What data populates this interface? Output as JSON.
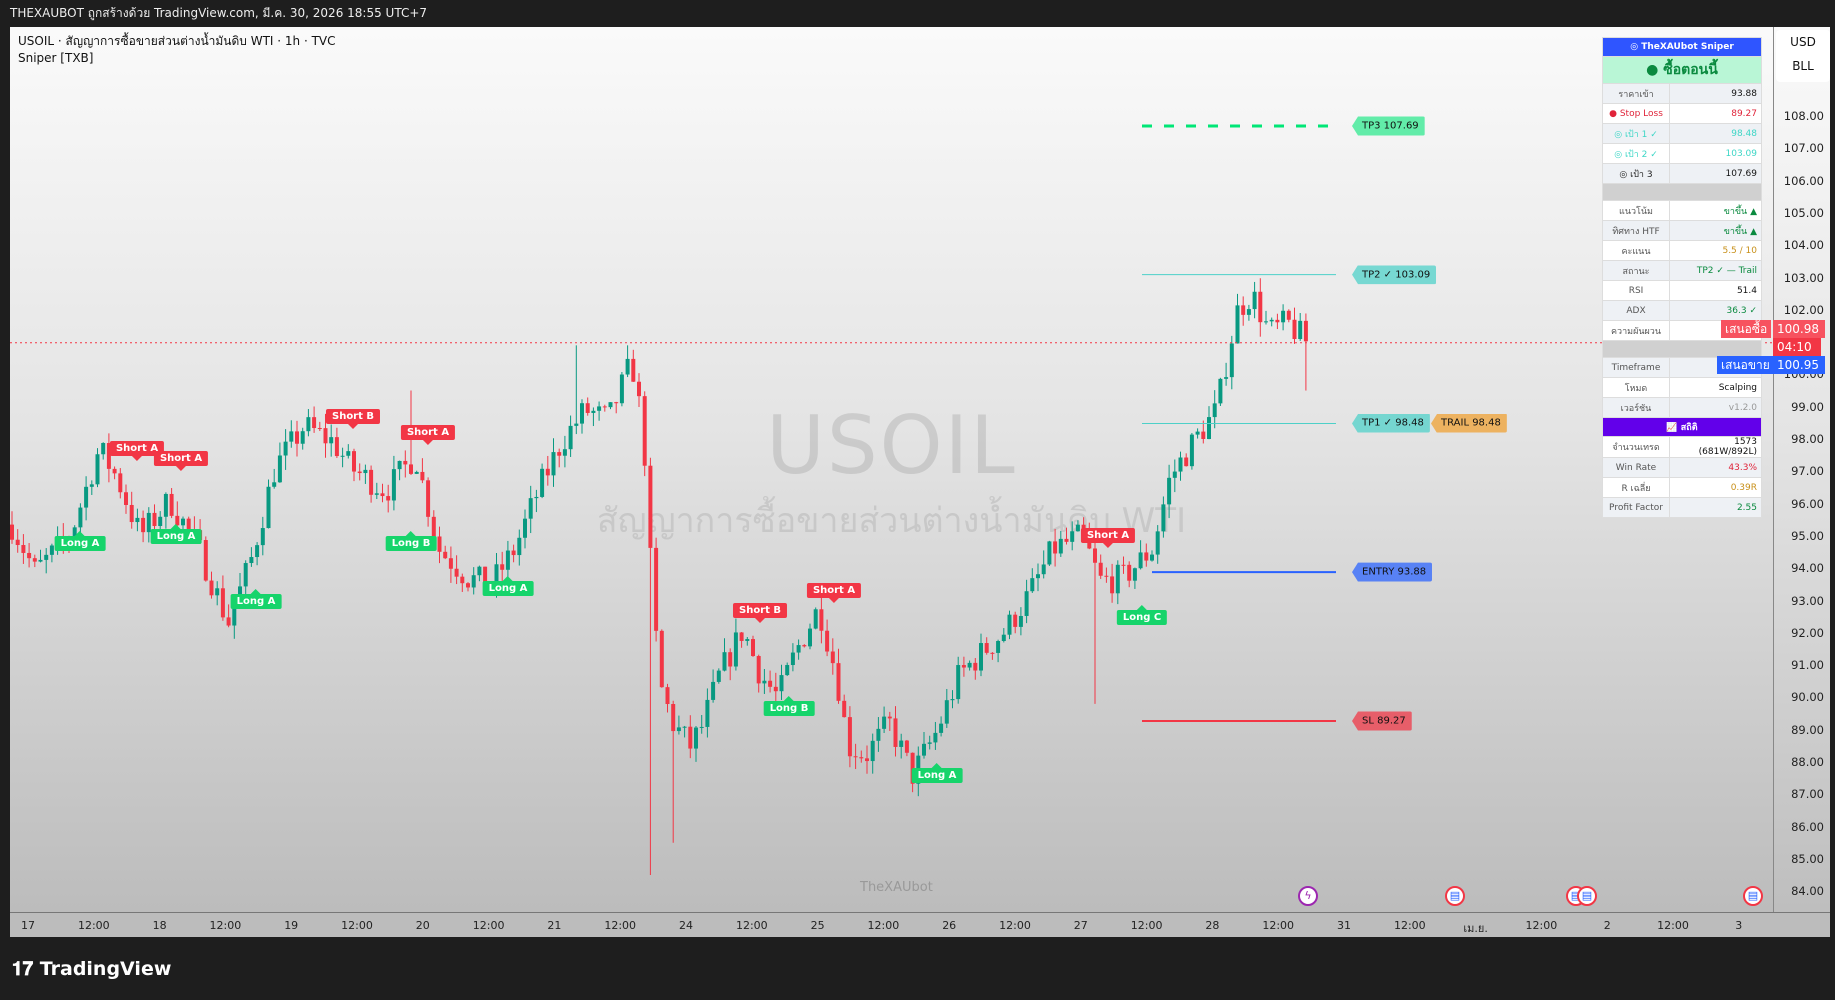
{
  "header": {
    "title": "THEXAUBOT ถูกสร้างด้วย TradingView.com, มี.ค. 30, 2026 18:55 UTC+7"
  },
  "legend": {
    "symbol_line": "USOIL · สัญญาการซื้อขายส่วนต่างน้ำมันดิบ WTI · 1h · TVC",
    "indicator": "Sniper [TXB]"
  },
  "watermark": {
    "symbol": "USOIL",
    "description": "สัญญาการซื้อขายส่วนต่างน้ำมันดิบ WTI",
    "author": "TheXAUbot"
  },
  "price_axis": {
    "currency": "USD",
    "unit": "BLL",
    "labels": [
      "108.00",
      "107.00",
      "106.00",
      "105.00",
      "104.00",
      "103.00",
      "102.00",
      "100.00",
      "99.00",
      "98.00",
      "97.00",
      "96.00",
      "95.00",
      "94.00",
      "93.00",
      "92.00",
      "91.00",
      "90.00",
      "89.00",
      "88.00",
      "87.00",
      "86.00",
      "85.00",
      "84.00"
    ],
    "bid_label": "เสนอซื้อ",
    "bid": "100.98",
    "countdown": "04:10",
    "ask_label": "เสนอขาย",
    "ask": "100.95"
  },
  "time_axis": [
    "17",
    "12:00",
    "18",
    "12:00",
    "19",
    "12:00",
    "20",
    "12:00",
    "21",
    "12:00",
    "24",
    "12:00",
    "25",
    "12:00",
    "26",
    "12:00",
    "27",
    "12:00",
    "28",
    "12:00",
    "31",
    "12:00",
    "เม.ย.",
    "12:00",
    "2",
    "12:00",
    "3"
  ],
  "levels": [
    {
      "label": "TP3 107.69",
      "price": 107.69,
      "color": "#00e676",
      "style": "dashed"
    },
    {
      "label": "TP2 ✓ 103.09",
      "price": 103.09,
      "color": "#4dd0c8",
      "style": "solid"
    },
    {
      "label": "TP1 ✓ 98.48",
      "price": 98.48,
      "color": "#4dd0c8",
      "style": "solid"
    },
    {
      "label": "TRAIL 98.48",
      "price": 98.48,
      "color": "#f0a030",
      "style": "solid"
    },
    {
      "label": "ENTRY 93.88",
      "price": 93.88,
      "color": "#2962ff",
      "style": "solid"
    },
    {
      "label": "SL 89.27",
      "price": 89.27,
      "color": "#f23645",
      "style": "solid"
    }
  ],
  "signals": [
    {
      "type": "short",
      "text": "Short A",
      "price": 97.5
    },
    {
      "type": "short",
      "text": "Short A",
      "price": 97.2
    },
    {
      "type": "short",
      "text": "Short B",
      "price": 98.5
    },
    {
      "type": "short",
      "text": "Short A",
      "price": 98.0
    },
    {
      "type": "short",
      "text": "Short B",
      "price": 92.5
    },
    {
      "type": "short",
      "text": "Short A",
      "price": 93.1
    },
    {
      "type": "short",
      "text": "Short A",
      "price": 94.8
    },
    {
      "type": "long",
      "text": "Long A",
      "price": 95.0
    },
    {
      "type": "long",
      "text": "Long A",
      "price": 95.2
    },
    {
      "type": "long",
      "text": "Long A",
      "price": 93.2
    },
    {
      "type": "long",
      "text": "Long B",
      "price": 95.0
    },
    {
      "type": "long",
      "text": "Long A",
      "price": 93.6
    },
    {
      "type": "long",
      "text": "Long B",
      "price": 89.9
    },
    {
      "type": "long",
      "text": "Long A",
      "price": 87.8
    },
    {
      "type": "long",
      "text": "Long C",
      "price": 92.7
    }
  ],
  "chart_data": {
    "type": "candlestick",
    "symbol": "USOIL",
    "timeframe": "1h",
    "close_path": [
      95.35,
      93.9,
      95.0,
      97.7,
      96.8,
      95.0,
      96.1,
      94.6,
      92.3,
      94.3,
      97.1,
      98.4,
      97.9,
      97.1,
      96.4,
      97.5,
      94.6,
      93.7,
      93.5,
      94.6,
      96.4,
      97.9,
      98.9,
      98.6,
      100.4,
      98.2,
      92.8,
      90.3,
      89.2,
      88.5,
      89.1,
      90.7,
      92.1,
      90.7,
      90.0,
      91.4,
      92.8,
      90.7,
      88.5,
      88.2,
      89.2,
      87.6,
      88.9,
      90.7,
      91.4,
      92.1,
      93.2,
      94.6,
      95.0,
      93.6,
      93.7,
      94.6,
      96.8,
      97.9,
      98.9,
      100.7,
      102.0,
      102.5,
      101.3,
      101.6,
      100.98
    ],
    "wick_extremes": [
      84.5,
      85.5,
      89.8,
      99.5,
      100.9,
      100.9,
      99.5
    ],
    "last": 100.98,
    "y_range": [
      84,
      108.5
    ],
    "up_color": "#089981",
    "down_color": "#f23645"
  },
  "panel": {
    "title": "TheXAUbot Sniper",
    "signal": "ซื้อตอนนี้",
    "trade_rows": [
      {
        "k": "ราคาเข้า",
        "v": "93.88",
        "kc": "#555",
        "vc": "#111"
      },
      {
        "k": "Stop Loss",
        "v": "89.27",
        "kc": "#e0243a",
        "vc": "#e0243a",
        "icon": "●"
      },
      {
        "k": "เป้า 1 ✓",
        "v": "98.48",
        "kc": "#3dd6c6",
        "vc": "#3dd6c6",
        "icon": "◎"
      },
      {
        "k": "เป้า 2 ✓",
        "v": "103.09",
        "kc": "#3dd6c6",
        "vc": "#3dd6c6",
        "icon": "◎"
      },
      {
        "k": "เป้า 3",
        "v": "107.69",
        "kc": "#222",
        "vc": "#111",
        "icon": "◎"
      }
    ],
    "status_rows": [
      {
        "k": "แนวโน้ม",
        "v": "ขาขึ้น ▲",
        "vc": "#0a8a3f"
      },
      {
        "k": "ทิศทาง HTF",
        "v": "ขาขึ้น ▲",
        "vc": "#0a8a3f"
      },
      {
        "k": "คะแนน",
        "v": "5.5 / 10",
        "vc": "#c8901a"
      },
      {
        "k": "สถานะ",
        "v": "TP2 ✓ — Trail",
        "vc": "#0a8a3f"
      },
      {
        "k": "RSI",
        "v": "51.4",
        "vc": "#111"
      },
      {
        "k": "ADX",
        "v": "36.3 ✓",
        "vc": "#0a8a3f"
      },
      {
        "k": "ความผันผวน",
        "v": "",
        "vc": "#111"
      }
    ],
    "info_rows": [
      {
        "k": "Timeframe",
        "v": "",
        "vc": "#111"
      },
      {
        "k": "โหมด",
        "v": "Scalping",
        "vc": "#111"
      },
      {
        "k": "เวอร์ชัน",
        "v": "v1.2.0",
        "vc": "#999"
      }
    ],
    "stats_title": "สถิติ",
    "stats_rows": [
      {
        "k": "จำนวนเทรด",
        "v": "1573 (681W/892L)",
        "vc": "#111"
      },
      {
        "k": "Win Rate",
        "v": "43.3%",
        "vc": "#e0243a"
      },
      {
        "k": "R เฉลี่ย",
        "v": "0.39R",
        "vc": "#c8901a"
      },
      {
        "k": "Profit Factor",
        "v": "2.55",
        "vc": "#0a8a3f"
      }
    ]
  },
  "footer": {
    "brand": "TradingView"
  }
}
